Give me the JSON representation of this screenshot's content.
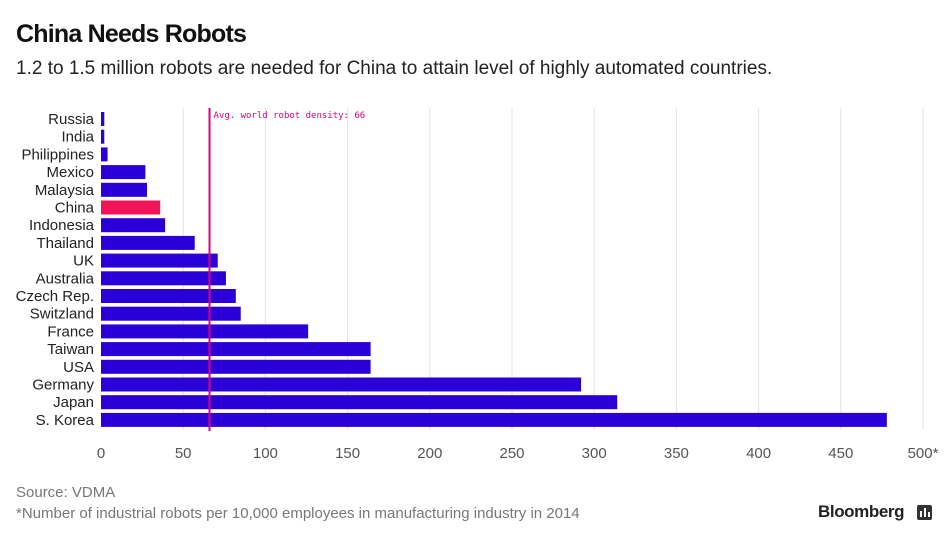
{
  "title": "China Needs Robots",
  "subtitle": "1.2 to 1.5 million robots are needed for China to attain level of highly automated countries.",
  "source": "Source:  VDMA",
  "footnote": "*Number of industrial robots per 10,000 employees in manufacturing industry in 2014",
  "brand": "Bloomberg",
  "colors": {
    "bar": "#2b00d8",
    "highlight": "#f0145a",
    "reference": "#e0007a"
  },
  "chart_data": {
    "type": "bar",
    "orientation": "horizontal",
    "categories": [
      "Russia",
      "India",
      "Philippines",
      "Mexico",
      "Malaysia",
      "China",
      "Indonesia",
      "Thailand",
      "UK",
      "Australia",
      "Czech Rep.",
      "Switzland",
      "France",
      "Taiwan",
      "USA",
      "Germany",
      "Japan",
      "S. Korea"
    ],
    "values": [
      2,
      2,
      4,
      27,
      28,
      36,
      39,
      57,
      71,
      76,
      82,
      85,
      126,
      164,
      164,
      292,
      314,
      478
    ],
    "highlight": "China",
    "xlim": [
      0,
      500
    ],
    "xticks": [
      0,
      50,
      100,
      150,
      200,
      250,
      300,
      350,
      400,
      450,
      500
    ],
    "xtick_labels": [
      "0",
      "50",
      "100",
      "150",
      "200",
      "250",
      "300",
      "350",
      "400",
      "450",
      "500*"
    ],
    "grid": "vertical",
    "reference_line": {
      "value": 66,
      "label": "Avg. world robot density: 66"
    }
  }
}
